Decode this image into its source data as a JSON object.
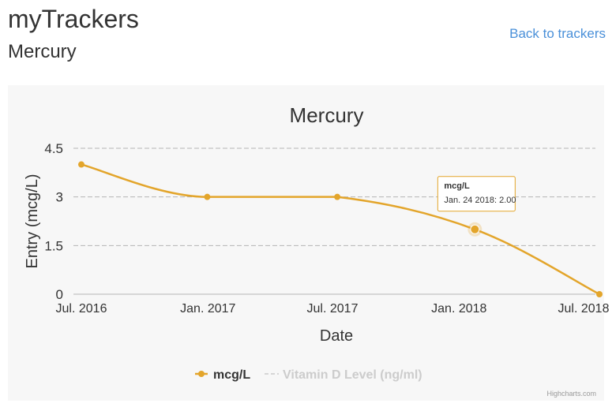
{
  "header": {
    "app_title": "myTrackers",
    "subtitle": "Mercury",
    "back_link": "Back to trackers"
  },
  "colors": {
    "series_primary": "#e3a52b",
    "series_inactive": "#cccccc",
    "panel_bg": "#f7f7f7",
    "link": "#4a90d9"
  },
  "chart_data": {
    "type": "line",
    "title": "Mercury",
    "xlabel": "Date",
    "ylabel": "Entry (mcg/L)",
    "ylim": [
      0,
      4.5
    ],
    "y_ticks": [
      "0",
      "1.5",
      "3",
      "4.5"
    ],
    "x_ticks": [
      "Jul. 2016",
      "Jan. 2017",
      "Jul. 2017",
      "Jan. 2018",
      "Jul. 2018"
    ],
    "grid": true,
    "legend_position": "bottom-center",
    "series": [
      {
        "name": "mcg/L",
        "color": "#e3a52b",
        "points": [
          {
            "x": "2016-07-01",
            "y": 4.0
          },
          {
            "x": "2016-12-31",
            "y": 3.0
          },
          {
            "x": "2017-07-08",
            "y": 3.0
          },
          {
            "x": "2018-01-24",
            "y": 2.0
          },
          {
            "x": "2018-07-24",
            "y": 0.0
          }
        ]
      },
      {
        "name": "Vitamin D Level (ng/ml)",
        "color": "#cccccc",
        "hidden": true,
        "points": []
      }
    ],
    "tooltip": {
      "series": "mcg/L",
      "text": "Jan. 24 2018: 2.00",
      "point_index": 3
    },
    "credits": "Highcharts.com"
  }
}
